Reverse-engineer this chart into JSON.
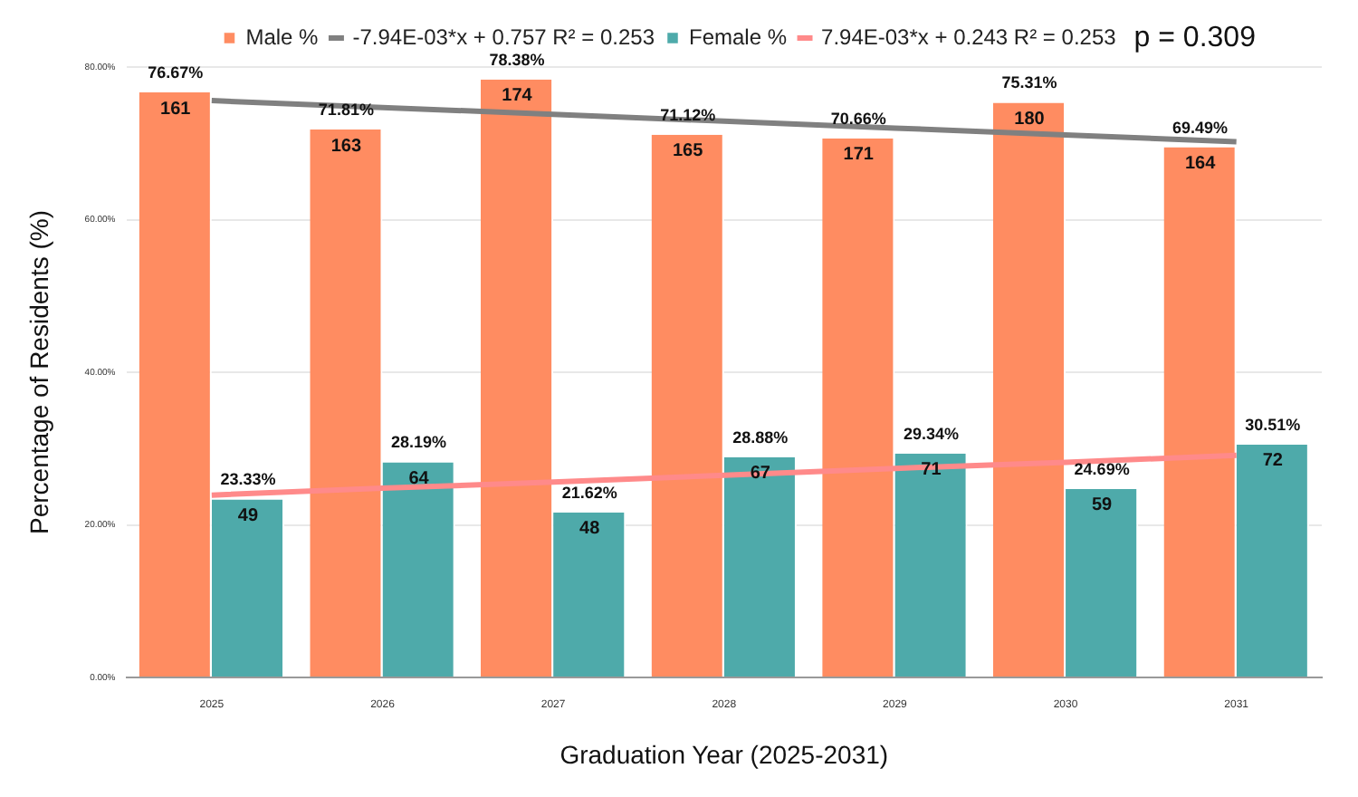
{
  "chart_data": {
    "type": "bar",
    "xlabel": "Graduation Year (2025-2031)",
    "ylabel": "Percentage of Residents (%)",
    "categories": [
      "2025",
      "2026",
      "2027",
      "2028",
      "2029",
      "2030",
      "2031"
    ],
    "series": [
      {
        "name": "Male %",
        "color": "#ff8c61",
        "values": [
          76.67,
          71.81,
          78.38,
          71.12,
          70.66,
          75.31,
          69.49
        ],
        "value_labels": [
          "76.67%",
          "71.81%",
          "78.38%",
          "71.12%",
          "70.66%",
          "75.31%",
          "69.49%"
        ]
      },
      {
        "name": "-7.94E-03*x + 0.757 R² = 0.253",
        "type": "line",
        "color": "#808080",
        "values": [
          75.6,
          74.7,
          73.8,
          72.9,
          72.0,
          71.1,
          70.2
        ]
      },
      {
        "name": "Female %",
        "color": "#4eaaaa",
        "values": [
          23.33,
          28.19,
          21.62,
          28.88,
          29.34,
          24.69,
          30.51
        ],
        "value_labels": [
          "23.33%",
          "28.19%",
          "21.62%",
          "28.88%",
          "29.34%",
          "24.69%",
          "30.51%"
        ]
      },
      {
        "name": "7.94E-03*x + 0.243 R² = 0.253",
        "type": "line",
        "color": "#ff8a8a",
        "values": [
          23.9,
          24.8,
          25.6,
          26.5,
          27.4,
          28.2,
          29.1
        ]
      }
    ],
    "ylim": [
      0,
      80
    ],
    "yticks": [
      {
        "value": 0,
        "label": "0.00%"
      },
      {
        "value": 20,
        "label": "20.00%"
      },
      {
        "value": 40,
        "label": "40.00%"
      },
      {
        "value": 60,
        "label": "60.00%"
      },
      {
        "value": 80,
        "label": "80.00%"
      }
    ],
    "grid": "y",
    "legend": "top",
    "marker": "none",
    "annotations": [
      "161",
      "163",
      "174",
      "165",
      "171",
      "180",
      "164",
      "49",
      "64",
      "48",
      "67",
      "71",
      "59",
      "72",
      "p = 0.309"
    ]
  }
}
